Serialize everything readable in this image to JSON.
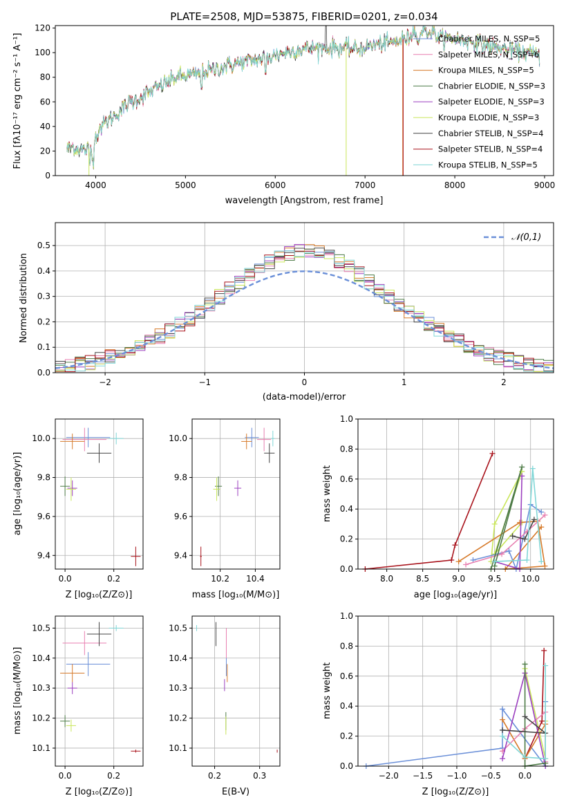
{
  "chart_data": [
    {
      "id": "spectrum",
      "type": "line",
      "title": "PLATE=2508, MJD=53875, FIBERID=0201, z=0.034",
      "xlabel": "wavelength [Angstrom, rest frame]",
      "ylabel": "Flux [fλ10⁻¹⁷ erg cm⁻² s⁻¹ A⁻¹]",
      "xlim": [
        3550,
        9100
      ],
      "ylim": [
        0,
        122
      ],
      "xticks": [
        4000,
        5000,
        6000,
        7000,
        8000,
        9000
      ],
      "yticks": [
        0,
        20,
        40,
        60,
        80,
        100,
        120
      ],
      "grid": false,
      "legend_position": "right",
      "continuum": {
        "x": [
          3680,
          3750,
          3850,
          3950,
          4050,
          4200,
          4350,
          4500,
          4700,
          4900,
          5100,
          5300,
          5500,
          5700,
          5900,
          6100,
          6300,
          6500,
          6700,
          6900,
          7100,
          7300,
          7500,
          7600,
          7800,
          8000,
          8200,
          8400,
          8600,
          8800,
          8950
        ],
        "y": [
          22,
          23,
          21,
          22,
          40,
          48,
          58,
          64,
          72,
          80,
          82,
          86,
          90,
          93,
          96,
          100,
          103,
          104,
          104,
          103,
          106,
          108,
          112,
          114,
          112,
          111,
          109,
          105,
          102,
          100,
          97
        ]
      },
      "series": [
        {
          "name": "Chabrier MILES, N_SSP=5",
          "color": "#6a8fd8"
        },
        {
          "name": "Salpeter MILES, N_SSP=6",
          "color": "#e87fb0"
        },
        {
          "name": "Kroupa MILES, N_SSP=5",
          "color": "#d67a2a"
        },
        {
          "name": "Chabrier ELODIE, N_SSP=3",
          "color": "#4c7a45"
        },
        {
          "name": "Salpeter ELODIE, N_SSP=3",
          "color": "#9b3fbf"
        },
        {
          "name": "Kroupa ELODIE, N_SSP=3",
          "color": "#c9e65a"
        },
        {
          "name": "Chabrier STELIB, N_SSP=4",
          "color": "#444444"
        },
        {
          "name": "Salpeter STELIB, N_SSP=4",
          "color": "#a8121b"
        },
        {
          "name": "Kroupa STELIB, N_SSP=5",
          "color": "#7fd6d6"
        }
      ]
    },
    {
      "id": "residuals",
      "type": "histogram",
      "xlabel": "(data-model)/error",
      "ylabel": "Normed distribution",
      "xlim": [
        -2.5,
        2.5
      ],
      "ylim": [
        0,
        0.59
      ],
      "xticks": [
        -2,
        -1,
        0,
        1,
        2
      ],
      "yticks": [
        0.0,
        0.1,
        0.2,
        0.3,
        0.4,
        0.5
      ],
      "grid": true,
      "legend_position": "top-right",
      "normal_label": "𝒩(0,1)",
      "normal_color": "#6a8fd8"
    },
    {
      "id": "age-Z",
      "type": "scatter",
      "xlabel": "Z [log₁₀(Z/Z⊙)]",
      "ylabel": "age  [log₁₀(age/yr)]",
      "xlim": [
        -0.04,
        0.32
      ],
      "ylim": [
        9.33,
        10.1
      ],
      "xticks": [
        0.0,
        0.2
      ],
      "yticks": [
        9.4,
        9.6,
        9.8,
        10.0
      ],
      "grid": true,
      "points": [
        {
          "x": 0.095,
          "y": 10.005,
          "xerr": 0.09,
          "yerr": 0.05,
          "color": "#6a8fd8"
        },
        {
          "x": 0.08,
          "y": 9.995,
          "xerr": 0.09,
          "yerr": 0.06,
          "color": "#e87fb0"
        },
        {
          "x": 0.03,
          "y": 9.985,
          "xerr": 0.05,
          "yerr": 0.04,
          "color": "#d67a2a"
        },
        {
          "x": 0.0,
          "y": 9.755,
          "xerr": 0.02,
          "yerr": 0.05,
          "color": "#4c7a45"
        },
        {
          "x": 0.03,
          "y": 9.745,
          "xerr": 0.02,
          "yerr": 0.04,
          "color": "#9b3fbf"
        },
        {
          "x": 0.025,
          "y": 9.74,
          "xerr": 0.02,
          "yerr": 0.06,
          "color": "#c9e65a"
        },
        {
          "x": 0.14,
          "y": 9.925,
          "xerr": 0.05,
          "yerr": 0.05,
          "color": "#444444"
        },
        {
          "x": 0.29,
          "y": 9.395,
          "xerr": 0.02,
          "yerr": 0.05,
          "color": "#a8121b"
        },
        {
          "x": 0.21,
          "y": 10.0,
          "xerr": 0.03,
          "yerr": 0.03,
          "color": "#7fd6d6"
        }
      ]
    },
    {
      "id": "age-mass",
      "type": "scatter",
      "xlabel": "mass [log₁₀(M/M⊙)]",
      "ylabel": "",
      "xlim": [
        10.04,
        10.54
      ],
      "ylim": [
        9.33,
        10.1
      ],
      "xticks": [
        10.2,
        10.4
      ],
      "yticks": [
        9.4,
        9.6,
        9.8,
        10.0
      ],
      "grid": true,
      "points": [
        {
          "x": 10.38,
          "y": 10.005,
          "xerr": 0.04,
          "yerr": 0.05,
          "color": "#6a8fd8"
        },
        {
          "x": 10.45,
          "y": 9.995,
          "xerr": 0.04,
          "yerr": 0.06,
          "color": "#e87fb0"
        },
        {
          "x": 10.35,
          "y": 9.985,
          "xerr": 0.03,
          "yerr": 0.04,
          "color": "#d67a2a"
        },
        {
          "x": 10.19,
          "y": 9.755,
          "xerr": 0.02,
          "yerr": 0.05,
          "color": "#4c7a45"
        },
        {
          "x": 10.3,
          "y": 9.745,
          "xerr": 0.02,
          "yerr": 0.04,
          "color": "#9b3fbf"
        },
        {
          "x": 10.18,
          "y": 9.74,
          "xerr": 0.02,
          "yerr": 0.06,
          "color": "#c9e65a"
        },
        {
          "x": 10.48,
          "y": 9.925,
          "xerr": 0.03,
          "yerr": 0.05,
          "color": "#444444"
        },
        {
          "x": 10.09,
          "y": 9.395,
          "xerr": 0.005,
          "yerr": 0.05,
          "color": "#a8121b"
        },
        {
          "x": 10.5,
          "y": 10.0,
          "xerr": 0.01,
          "yerr": 0.04,
          "color": "#7fd6d6"
        }
      ]
    },
    {
      "id": "weight-age",
      "type": "line",
      "xlabel": "age  [log₁₀(age/yr)]",
      "ylabel": "mass weight",
      "xlim": [
        7.6,
        10.32
      ],
      "ylim": [
        0,
        1.0
      ],
      "xticks": [
        8.0,
        8.5,
        9.0,
        9.5,
        10.0
      ],
      "yticks": [
        0.0,
        0.2,
        0.4,
        0.6,
        0.8,
        1.0
      ],
      "grid": true,
      "series": [
        {
          "color": "#a8121b",
          "x": [
            7.7,
            8.9,
            8.95,
            9.47
          ],
          "y": [
            0.0,
            0.06,
            0.16,
            0.77
          ]
        },
        {
          "color": "#c9e65a",
          "x": [
            9.45,
            9.5,
            9.88,
            9.5,
            9.88
          ],
          "y": [
            0.05,
            0.3,
            0.65,
            0.1,
            0.31
          ]
        },
        {
          "color": "#d67a2a",
          "x": [
            9.0,
            9.85,
            10.1,
            10.2,
            9.65,
            10.15
          ],
          "y": [
            0.05,
            0.31,
            0.32,
            0.02,
            0.0,
            0.28
          ]
        },
        {
          "color": "#6a8fd8",
          "x": [
            9.2,
            9.7,
            9.8,
            10.0,
            10.15
          ],
          "y": [
            0.06,
            0.12,
            0.0,
            0.43,
            0.38
          ]
        },
        {
          "color": "#e87fb0",
          "x": [
            9.1,
            9.6,
            9.95,
            10.2
          ],
          "y": [
            0.03,
            0.1,
            0.25,
            0.36
          ]
        },
        {
          "color": "#9b3fbf",
          "x": [
            9.5,
            9.85,
            9.88
          ],
          "y": [
            0.05,
            0.0,
            0.62
          ]
        },
        {
          "color": "#4c7a45",
          "x": [
            9.45,
            9.88,
            9.5
          ],
          "y": [
            0.0,
            0.68,
            0.02
          ]
        },
        {
          "color": "#444444",
          "x": [
            9.75,
            9.92,
            10.05
          ],
          "y": [
            0.22,
            0.2,
            0.33
          ]
        },
        {
          "color": "#7fd6d6",
          "x": [
            9.5,
            9.95,
            10.03,
            10.15
          ],
          "y": [
            0.05,
            0.06,
            0.67,
            0.05
          ]
        }
      ]
    },
    {
      "id": "mass-Z",
      "type": "scatter",
      "xlabel": "Z [log₁₀(Z/Z⊙)]",
      "ylabel": "mass [log₁₀(M/M⊙)]",
      "xlim": [
        -0.04,
        0.32
      ],
      "ylim": [
        10.04,
        10.54
      ],
      "xticks": [
        0.0,
        0.2
      ],
      "yticks": [
        10.1,
        10.2,
        10.3,
        10.4,
        10.5
      ],
      "grid": true,
      "points": [
        {
          "x": 0.095,
          "y": 10.38,
          "xerr": 0.09,
          "yerr": 0.04,
          "color": "#6a8fd8"
        },
        {
          "x": 0.08,
          "y": 10.45,
          "xerr": 0.09,
          "yerr": 0.04,
          "color": "#e87fb0"
        },
        {
          "x": 0.03,
          "y": 10.35,
          "xerr": 0.05,
          "yerr": 0.03,
          "color": "#d67a2a"
        },
        {
          "x": 0.0,
          "y": 10.19,
          "xerr": 0.02,
          "yerr": 0.02,
          "color": "#4c7a45"
        },
        {
          "x": 0.03,
          "y": 10.3,
          "xerr": 0.02,
          "yerr": 0.02,
          "color": "#9b3fbf"
        },
        {
          "x": 0.025,
          "y": 10.175,
          "xerr": 0.02,
          "yerr": 0.02,
          "color": "#c9e65a"
        },
        {
          "x": 0.14,
          "y": 10.48,
          "xerr": 0.05,
          "yerr": 0.04,
          "color": "#444444"
        },
        {
          "x": 0.29,
          "y": 10.09,
          "xerr": 0.02,
          "yerr": 0.005,
          "color": "#a8121b"
        },
        {
          "x": 0.21,
          "y": 10.5,
          "xerr": 0.03,
          "yerr": 0.01,
          "color": "#7fd6d6"
        }
      ]
    },
    {
      "id": "mass-EBV",
      "type": "scatter",
      "xlabel": "E(B-V)",
      "ylabel": "",
      "xlim": [
        0.15,
        0.345
      ],
      "ylim": [
        10.04,
        10.54
      ],
      "xticks": [
        0.2,
        0.3
      ],
      "yticks": [
        10.1,
        10.2,
        10.3,
        10.4,
        10.5
      ],
      "grid": true,
      "points": [
        {
          "x": 0.226,
          "y": 10.38,
          "yerr": 0.04,
          "color": "#6a8fd8"
        },
        {
          "x": 0.226,
          "y": 10.45,
          "yerr": 0.05,
          "color": "#e87fb0"
        },
        {
          "x": 0.228,
          "y": 10.35,
          "yerr": 0.03,
          "color": "#d67a2a"
        },
        {
          "x": 0.225,
          "y": 10.19,
          "yerr": 0.03,
          "color": "#4c7a45"
        },
        {
          "x": 0.222,
          "y": 10.31,
          "yerr": 0.02,
          "color": "#9b3fbf"
        },
        {
          "x": 0.225,
          "y": 10.175,
          "yerr": 0.03,
          "color": "#c9e65a"
        },
        {
          "x": 0.203,
          "y": 10.48,
          "yerr": 0.04,
          "color": "#444444"
        },
        {
          "x": 0.339,
          "y": 10.09,
          "yerr": 0.005,
          "color": "#a8121b"
        },
        {
          "x": 0.16,
          "y": 10.5,
          "yerr": 0.01,
          "color": "#7fd6d6"
        }
      ]
    },
    {
      "id": "weight-Z",
      "type": "line",
      "xlabel": "Z [log₁₀(Z/Z⊙)]",
      "ylabel": "mass weight",
      "xlim": [
        -2.45,
        0.42
      ],
      "ylim": [
        0,
        1.0
      ],
      "xticks": [
        -2.0,
        -1.5,
        -1.0,
        -0.5,
        0.0
      ],
      "yticks": [
        0.0,
        0.2,
        0.4,
        0.6,
        0.8,
        1.0
      ],
      "grid": true,
      "series": [
        {
          "color": "#6a8fd8",
          "x": [
            -2.33,
            -0.33,
            -0.33,
            0.3,
            0.3
          ],
          "y": [
            0.0,
            0.12,
            0.38,
            0.0,
            0.43
          ]
        },
        {
          "color": "#c9e65a",
          "x": [
            0.0,
            0.3,
            0.3
          ],
          "y": [
            0.65,
            0.05,
            0.3
          ]
        },
        {
          "color": "#a8121b",
          "x": [
            0.0,
            0.25,
            0.28
          ],
          "y": [
            0.05,
            0.3,
            0.77
          ]
        },
        {
          "color": "#d67a2a",
          "x": [
            -0.33,
            0.0,
            0.3,
            0.3
          ],
          "y": [
            0.31,
            0.05,
            0.28,
            0.02
          ]
        },
        {
          "color": "#e87fb0",
          "x": [
            -0.33,
            0.0,
            0.3,
            0.3
          ],
          "y": [
            0.1,
            0.25,
            0.36,
            0.03
          ]
        },
        {
          "color": "#9b3fbf",
          "x": [
            -0.33,
            0.0,
            0.3
          ],
          "y": [
            0.05,
            0.62,
            0.0
          ]
        },
        {
          "color": "#4c7a45",
          "x": [
            0.0,
            0.0,
            0.3
          ],
          "y": [
            0.68,
            0.0,
            0.02
          ]
        },
        {
          "color": "#444444",
          "x": [
            -0.33,
            0.3,
            0.0
          ],
          "y": [
            0.24,
            0.22,
            0.33
          ]
        },
        {
          "color": "#7fd6d6",
          "x": [
            -0.33,
            0.0,
            0.3,
            0.3
          ],
          "y": [
            0.2,
            0.06,
            0.05,
            0.67
          ]
        }
      ]
    }
  ]
}
